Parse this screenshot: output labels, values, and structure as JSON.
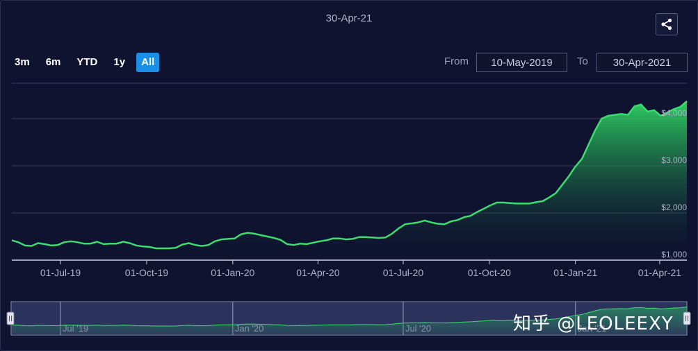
{
  "header": {
    "current_date": "30-Apr-21"
  },
  "range_selector": {
    "buttons": [
      {
        "label": "3m",
        "active": false
      },
      {
        "label": "6m",
        "active": false
      },
      {
        "label": "YTD",
        "active": false
      },
      {
        "label": "1y",
        "active": false
      },
      {
        "label": "All",
        "active": true
      }
    ],
    "from_label": "From",
    "from_value": "10-May-2019",
    "to_label": "To",
    "to_value": "30-Apr-2021"
  },
  "navigator": {
    "x_labels": [
      "Jul '19",
      "Jan '20",
      "Jul '20",
      "Jan '21"
    ]
  },
  "watermark": "知乎 @LEOLEEXY",
  "colors": {
    "background": "#0f1330",
    "line": "#3ddc6e",
    "area_top": "#2ecc63",
    "active_button": "#1a8fe8"
  },
  "chart_data": {
    "type": "area",
    "title": "",
    "xlabel": "",
    "ylabel": "",
    "y_ticks": [
      "$1,000",
      "$2,000",
      "$3,000",
      "$4,000"
    ],
    "y_tick_values": [
      1000,
      2000,
      3000,
      4000
    ],
    "x_ticks": [
      "01-Jul-19",
      "01-Oct-19",
      "01-Jan-20",
      "01-Apr-20",
      "01-Jul-20",
      "01-Oct-20",
      "01-Jan-21",
      "01-Apr-21"
    ],
    "x_tick_dates": [
      "2019-07-01",
      "2019-10-01",
      "2020-01-01",
      "2020-04-01",
      "2020-07-01",
      "2020-10-01",
      "2021-01-01",
      "2021-04-01"
    ],
    "ylim": [
      1000,
      4750
    ],
    "xlim": [
      "2019-05-10",
      "2021-04-30"
    ],
    "grid": true,
    "series": [
      {
        "points": [
          [
            "2019-05-10",
            1420
          ],
          [
            "2019-05-17",
            1380
          ],
          [
            "2019-05-24",
            1310
          ],
          [
            "2019-05-31",
            1300
          ],
          [
            "2019-06-07",
            1360
          ],
          [
            "2019-06-14",
            1340
          ],
          [
            "2019-06-21",
            1310
          ],
          [
            "2019-06-28",
            1320
          ],
          [
            "2019-07-05",
            1380
          ],
          [
            "2019-07-12",
            1400
          ],
          [
            "2019-07-19",
            1380
          ],
          [
            "2019-07-26",
            1350
          ],
          [
            "2019-08-02",
            1350
          ],
          [
            "2019-08-09",
            1390
          ],
          [
            "2019-08-16",
            1340
          ],
          [
            "2019-08-23",
            1350
          ],
          [
            "2019-08-30",
            1350
          ],
          [
            "2019-09-06",
            1390
          ],
          [
            "2019-09-13",
            1360
          ],
          [
            "2019-09-20",
            1310
          ],
          [
            "2019-09-27",
            1290
          ],
          [
            "2019-10-04",
            1280
          ],
          [
            "2019-10-11",
            1250
          ],
          [
            "2019-10-18",
            1250
          ],
          [
            "2019-10-25",
            1250
          ],
          [
            "2019-11-01",
            1260
          ],
          [
            "2019-11-08",
            1330
          ],
          [
            "2019-11-15",
            1360
          ],
          [
            "2019-11-22",
            1320
          ],
          [
            "2019-11-29",
            1300
          ],
          [
            "2019-12-06",
            1320
          ],
          [
            "2019-12-13",
            1400
          ],
          [
            "2019-12-20",
            1440
          ],
          [
            "2019-12-27",
            1450
          ],
          [
            "2020-01-03",
            1460
          ],
          [
            "2020-01-10",
            1550
          ],
          [
            "2020-01-17",
            1580
          ],
          [
            "2020-01-24",
            1560
          ],
          [
            "2020-01-31",
            1530
          ],
          [
            "2020-02-07",
            1500
          ],
          [
            "2020-02-14",
            1470
          ],
          [
            "2020-02-21",
            1430
          ],
          [
            "2020-02-28",
            1340
          ],
          [
            "2020-03-06",
            1320
          ],
          [
            "2020-03-13",
            1350
          ],
          [
            "2020-03-20",
            1340
          ],
          [
            "2020-03-27",
            1370
          ],
          [
            "2020-04-03",
            1400
          ],
          [
            "2020-04-10",
            1420
          ],
          [
            "2020-04-17",
            1460
          ],
          [
            "2020-04-24",
            1460
          ],
          [
            "2020-05-01",
            1440
          ],
          [
            "2020-05-08",
            1450
          ],
          [
            "2020-05-15",
            1490
          ],
          [
            "2020-05-22",
            1490
          ],
          [
            "2020-05-29",
            1480
          ],
          [
            "2020-06-05",
            1470
          ],
          [
            "2020-06-12",
            1480
          ],
          [
            "2020-06-19",
            1560
          ],
          [
            "2020-06-26",
            1670
          ],
          [
            "2020-07-03",
            1760
          ],
          [
            "2020-07-10",
            1780
          ],
          [
            "2020-07-17",
            1800
          ],
          [
            "2020-07-24",
            1840
          ],
          [
            "2020-07-31",
            1800
          ],
          [
            "2020-08-07",
            1770
          ],
          [
            "2020-08-14",
            1760
          ],
          [
            "2020-08-21",
            1820
          ],
          [
            "2020-08-28",
            1850
          ],
          [
            "2020-09-04",
            1910
          ],
          [
            "2020-09-11",
            1940
          ],
          [
            "2020-09-18",
            2020
          ],
          [
            "2020-09-25",
            2090
          ],
          [
            "2020-10-02",
            2160
          ],
          [
            "2020-10-09",
            2220
          ],
          [
            "2020-10-16",
            2220
          ],
          [
            "2020-10-23",
            2210
          ],
          [
            "2020-10-30",
            2200
          ],
          [
            "2020-11-06",
            2200
          ],
          [
            "2020-11-13",
            2200
          ],
          [
            "2020-11-20",
            2230
          ],
          [
            "2020-11-27",
            2250
          ],
          [
            "2020-12-04",
            2330
          ],
          [
            "2020-12-11",
            2420
          ],
          [
            "2020-12-18",
            2600
          ],
          [
            "2020-12-25",
            2780
          ],
          [
            "2020-12-31",
            2960
          ],
          [
            "2021-01-08",
            3150
          ],
          [
            "2021-01-15",
            3450
          ],
          [
            "2021-01-22",
            3750
          ],
          [
            "2021-01-29",
            4000
          ],
          [
            "2021-02-05",
            4060
          ],
          [
            "2021-02-12",
            4080
          ],
          [
            "2021-02-19",
            4100
          ],
          [
            "2021-02-26",
            4080
          ],
          [
            "2021-03-05",
            4260
          ],
          [
            "2021-03-12",
            4300
          ],
          [
            "2021-03-19",
            4150
          ],
          [
            "2021-03-26",
            4180
          ],
          [
            "2021-04-02",
            4060
          ],
          [
            "2021-04-09",
            4130
          ],
          [
            "2021-04-16",
            4200
          ],
          [
            "2021-04-23",
            4250
          ],
          [
            "2021-04-30",
            4370
          ]
        ]
      }
    ]
  }
}
